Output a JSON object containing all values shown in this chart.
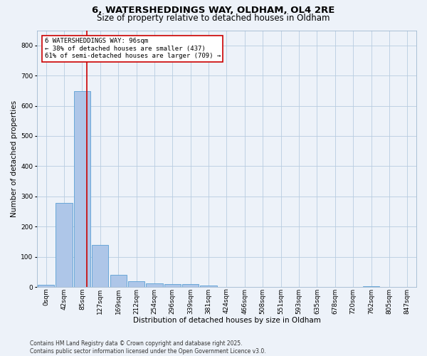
{
  "title": "6, WATERSHEDDINGS WAY, OLDHAM, OL4 2RE",
  "subtitle": "Size of property relative to detached houses in Oldham",
  "xlabel": "Distribution of detached houses by size in Oldham",
  "ylabel": "Number of detached properties",
  "footer": "Contains HM Land Registry data © Crown copyright and database right 2025.\nContains public sector information licensed under the Open Government Licence v3.0.",
  "bin_labels": [
    "0sqm",
    "42sqm",
    "85sqm",
    "127sqm",
    "169sqm",
    "212sqm",
    "254sqm",
    "296sqm",
    "339sqm",
    "381sqm",
    "424sqm",
    "466sqm",
    "508sqm",
    "551sqm",
    "593sqm",
    "635sqm",
    "678sqm",
    "720sqm",
    "762sqm",
    "805sqm",
    "847sqm"
  ],
  "bar_values": [
    7,
    278,
    648,
    140,
    40,
    18,
    11,
    10,
    10,
    5,
    0,
    0,
    0,
    0,
    0,
    0,
    0,
    0,
    3,
    0,
    0
  ],
  "bar_color": "#aec6e8",
  "bar_edge_color": "#5a9fd4",
  "vline_x": 2.26,
  "vline_color": "#cc0000",
  "annotation_text": "6 WATERSHEDDINGS WAY: 96sqm\n← 38% of detached houses are smaller (437)\n61% of semi-detached houses are larger (709) →",
  "annotation_box_color": "#ffffff",
  "annotation_box_edge": "#cc0000",
  "ylim": [
    0,
    850
  ],
  "yticks": [
    0,
    100,
    200,
    300,
    400,
    500,
    600,
    700,
    800
  ],
  "bg_color": "#edf2f9",
  "plot_bg_color": "#edf2f9",
  "title_fontsize": 9.5,
  "subtitle_fontsize": 8.5,
  "tick_fontsize": 6.5,
  "label_fontsize": 7.5,
  "footer_fontsize": 5.5
}
